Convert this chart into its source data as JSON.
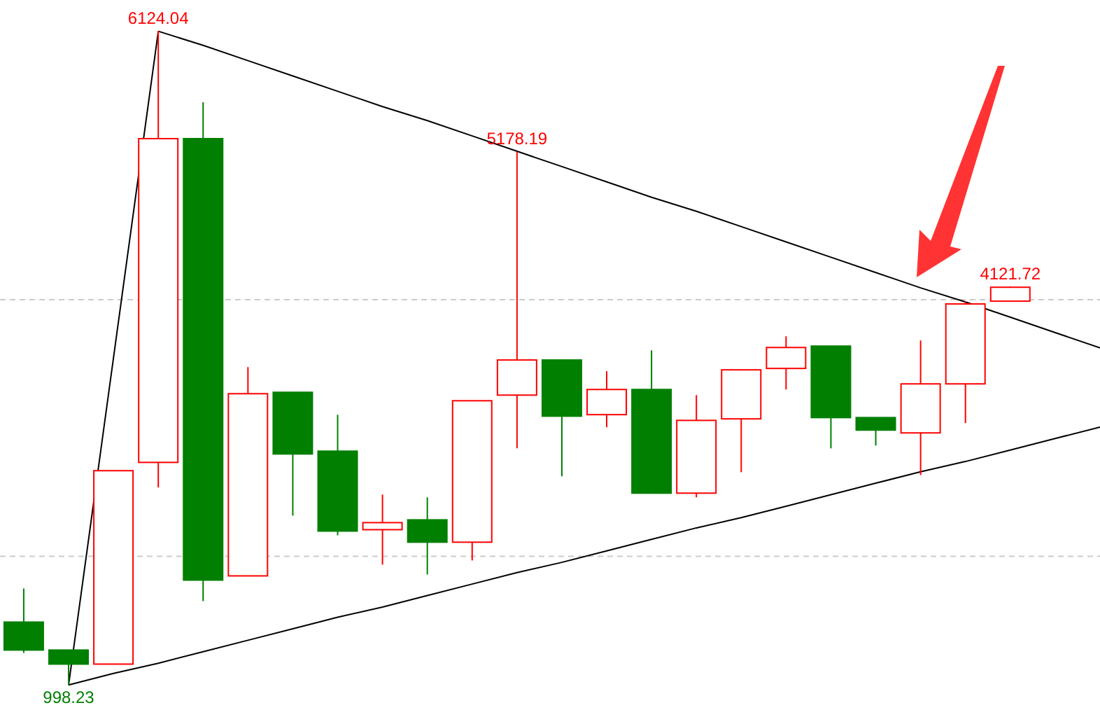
{
  "chart_data": {
    "type": "candlestick",
    "categories": [
      null,
      null,
      null,
      null,
      null,
      null,
      null,
      null,
      null,
      null,
      null,
      null,
      null,
      null,
      null,
      null,
      null,
      null,
      null,
      null,
      null,
      null,
      null,
      null,
      null
    ],
    "ohlc": [
      [
        1492,
        1755,
        1251,
        1273
      ],
      [
        1273,
        1273,
        998.23,
        1163
      ],
      [
        1163,
        2678,
        1163,
        2678
      ],
      [
        2743,
        6124.04,
        2546,
        5279
      ],
      [
        5279,
        5564,
        1657,
        1821
      ],
      [
        1854,
        3490,
        1854,
        3281
      ],
      [
        3292,
        3292,
        2326,
        2809
      ],
      [
        2831,
        3116,
        2172,
        2205
      ],
      [
        2216,
        2491,
        1942,
        2271
      ],
      [
        2293,
        2469,
        1865,
        2118
      ],
      [
        2118,
        3226,
        1975,
        3226
      ],
      [
        3270,
        5178.19,
        2853,
        3545
      ],
      [
        3545,
        3545,
        2634,
        3105
      ],
      [
        3117,
        3457,
        3018,
        3314
      ],
      [
        3314,
        3621,
        2502,
        2502
      ],
      [
        2502,
        3270,
        2469,
        3072
      ],
      [
        3084,
        3468,
        2666,
        3468
      ],
      [
        3479,
        3731,
        3314,
        3643
      ],
      [
        3654,
        3654,
        2853,
        3094
      ],
      [
        3094,
        3094,
        2875,
        2996
      ],
      [
        2974,
        3698,
        2644,
        3358
      ],
      [
        3358,
        4005,
        3051,
        3984
      ],
      [
        4006,
        4121.72,
        4006,
        4115
      ],
      null,
      null
    ],
    "colors": [
      "#007f00",
      "#007f00",
      "#ff0000",
      "#ff0000",
      "#007f00",
      "#ff0000",
      "#007f00",
      "#007f00",
      "#ff0000",
      "#007f00",
      "#ff0000",
      "#ff0000",
      "#007f00",
      "#ff0000",
      "#007f00",
      "#ff0000",
      "#ff0000",
      "#ff0000",
      "#007f00",
      "#007f00",
      "#ff0000",
      "#ff0000",
      "#ff0000",
      null,
      null
    ],
    "series": [
      {
        "type": "line",
        "color": "#000000",
        "values": [
          null,
          1000,
          3560,
          6120,
          null,
          null,
          null,
          null,
          null,
          null,
          null,
          null,
          null,
          null,
          null,
          null,
          null,
          null,
          null,
          null,
          null,
          null,
          null,
          null,
          null
        ]
      },
      {
        "type": "line",
        "color": "#000000",
        "values": [
          null,
          null,
          null,
          6120,
          6010,
          5890,
          5770,
          5650,
          5530,
          5420,
          5300,
          5180,
          5060,
          4940,
          4820,
          4710,
          4590,
          4470,
          4350,
          4230,
          4110,
          4000,
          3880,
          3760,
          3640
        ]
      },
      {
        "type": "line",
        "color": "#000000",
        "values": [
          null,
          1000,
          1090,
          1170,
          1260,
          1350,
          1440,
          1530,
          1610,
          1700,
          1790,
          1880,
          1960,
          2050,
          2140,
          2230,
          2310,
          2400,
          2490,
          2580,
          2670,
          2750,
          2840,
          2930,
          3020
        ]
      }
    ],
    "ref_lines": [
      {
        "axis": "y",
        "value": 4017,
        "label": null,
        "color": "#cccccc",
        "line_style": "dashed"
      },
      {
        "axis": "y",
        "value": 2008,
        "label": null,
        "color": "#cccccc",
        "line_style": "dashed"
      }
    ],
    "annotations": [
      {
        "text": "6124.04",
        "y": 6124.04
      },
      {
        "text": "5178.19",
        "y": 5178.19
      },
      {
        "text": "4121.72",
        "y": 4121.72
      },
      {
        "text": "998.23",
        "y": 998.23
      }
    ]
  }
}
